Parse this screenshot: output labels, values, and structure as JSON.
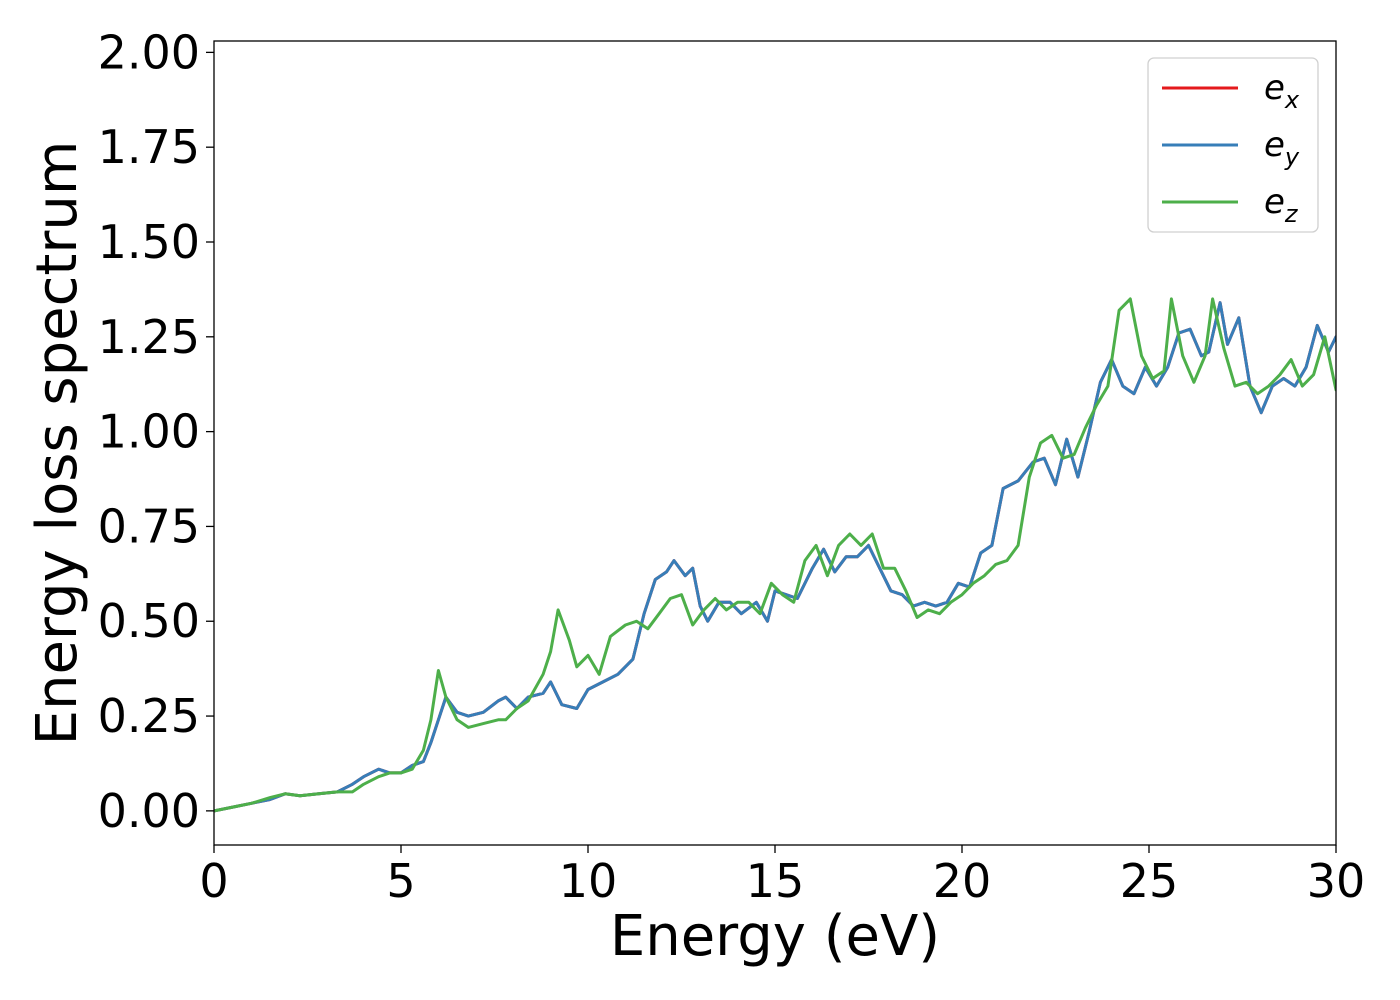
{
  "chart_data": {
    "type": "line",
    "title": "",
    "xlabel": "Energy (eV)",
    "ylabel": "Energy loss spectrum",
    "xlim": [
      0,
      30
    ],
    "ylim": [
      -0.09,
      2.03
    ],
    "x_ticks": [
      0,
      5,
      10,
      15,
      20,
      25,
      30
    ],
    "y_ticks": [
      0.0,
      0.25,
      0.5,
      0.75,
      1.0,
      1.25,
      1.5,
      1.75,
      2.0
    ],
    "y_tick_labels": [
      "0.00",
      "0.25",
      "0.50",
      "0.75",
      "1.00",
      "1.25",
      "1.50",
      "1.75",
      "2.00"
    ],
    "x_tick_labels": [
      "0",
      "5",
      "10",
      "15",
      "20",
      "25",
      "30"
    ],
    "grid": false,
    "legend_position": "top-right",
    "series": [
      {
        "name": "e_x",
        "label_base": "e",
        "label_sub": "x",
        "color": "#e41a1c",
        "x": [
          0,
          0.5,
          1,
          1.5,
          1.9,
          2.3,
          2.8,
          3.3,
          3.7,
          4,
          4.4,
          4.7,
          5,
          5.3,
          5.6,
          5.8,
          6,
          6.2,
          6.5,
          6.8,
          7.2,
          7.6,
          7.8,
          8.1,
          8.4,
          8.8,
          9.0,
          9.3,
          9.7,
          10,
          10.4,
          10.8,
          11.2,
          11.5,
          11.8,
          12.1,
          12.3,
          12.6,
          12.8,
          13,
          13.2,
          13.5,
          13.8,
          14.1,
          14.5,
          14.8,
          15,
          15.3,
          15.6,
          16,
          16.3,
          16.6,
          16.9,
          17.2,
          17.5,
          17.8,
          18.1,
          18.4,
          18.7,
          19,
          19.3,
          19.6,
          19.9,
          20.2,
          20.5,
          20.8,
          21.1,
          21.5,
          21.9,
          22.2,
          22.5,
          22.8,
          23.1,
          23.4,
          23.7,
          24,
          24.3,
          24.6,
          24.9,
          25.2,
          25.5,
          25.8,
          26.1,
          26.4,
          26.6,
          26.9,
          27.1,
          27.4,
          27.7,
          28,
          28.3,
          28.6,
          28.9,
          29.2,
          29.5,
          29.8,
          30
        ],
        "y": [
          0,
          0.01,
          0.02,
          0.03,
          0.045,
          0.04,
          0.045,
          0.05,
          0.07,
          0.09,
          0.11,
          0.1,
          0.1,
          0.12,
          0.13,
          0.18,
          0.24,
          0.3,
          0.26,
          0.25,
          0.26,
          0.29,
          0.3,
          0.27,
          0.3,
          0.31,
          0.34,
          0.28,
          0.27,
          0.32,
          0.34,
          0.36,
          0.4,
          0.52,
          0.61,
          0.63,
          0.66,
          0.62,
          0.64,
          0.54,
          0.5,
          0.55,
          0.55,
          0.52,
          0.55,
          0.5,
          0.58,
          0.57,
          0.56,
          0.64,
          0.69,
          0.63,
          0.67,
          0.67,
          0.7,
          0.64,
          0.58,
          0.57,
          0.54,
          0.55,
          0.54,
          0.55,
          0.6,
          0.59,
          0.68,
          0.7,
          0.85,
          0.87,
          0.92,
          0.93,
          0.86,
          0.98,
          0.88,
          1.0,
          1.13,
          1.19,
          1.12,
          1.1,
          1.17,
          1.12,
          1.17,
          1.26,
          1.27,
          1.2,
          1.21,
          1.34,
          1.23,
          1.3,
          1.12,
          1.05,
          1.12,
          1.14,
          1.12,
          1.17,
          1.28,
          1.21,
          1.25
        ]
      },
      {
        "name": "e_y",
        "label_base": "e",
        "label_sub": "y",
        "color": "#377eb8",
        "x": [
          0,
          0.5,
          1,
          1.5,
          1.9,
          2.3,
          2.8,
          3.3,
          3.7,
          4,
          4.4,
          4.7,
          5,
          5.3,
          5.6,
          5.8,
          6,
          6.2,
          6.5,
          6.8,
          7.2,
          7.6,
          7.8,
          8.1,
          8.4,
          8.8,
          9.0,
          9.3,
          9.7,
          10,
          10.4,
          10.8,
          11.2,
          11.5,
          11.8,
          12.1,
          12.3,
          12.6,
          12.8,
          13,
          13.2,
          13.5,
          13.8,
          14.1,
          14.5,
          14.8,
          15,
          15.3,
          15.6,
          16,
          16.3,
          16.6,
          16.9,
          17.2,
          17.5,
          17.8,
          18.1,
          18.4,
          18.7,
          19,
          19.3,
          19.6,
          19.9,
          20.2,
          20.5,
          20.8,
          21.1,
          21.5,
          21.9,
          22.2,
          22.5,
          22.8,
          23.1,
          23.4,
          23.7,
          24,
          24.3,
          24.6,
          24.9,
          25.2,
          25.5,
          25.8,
          26.1,
          26.4,
          26.6,
          26.9,
          27.1,
          27.4,
          27.7,
          28,
          28.3,
          28.6,
          28.9,
          29.2,
          29.5,
          29.8,
          30
        ],
        "y": [
          0,
          0.01,
          0.02,
          0.03,
          0.045,
          0.04,
          0.045,
          0.05,
          0.07,
          0.09,
          0.11,
          0.1,
          0.1,
          0.12,
          0.13,
          0.18,
          0.24,
          0.3,
          0.26,
          0.25,
          0.26,
          0.29,
          0.3,
          0.27,
          0.3,
          0.31,
          0.34,
          0.28,
          0.27,
          0.32,
          0.34,
          0.36,
          0.4,
          0.52,
          0.61,
          0.63,
          0.66,
          0.62,
          0.64,
          0.54,
          0.5,
          0.55,
          0.55,
          0.52,
          0.55,
          0.5,
          0.58,
          0.57,
          0.56,
          0.64,
          0.69,
          0.63,
          0.67,
          0.67,
          0.7,
          0.64,
          0.58,
          0.57,
          0.54,
          0.55,
          0.54,
          0.55,
          0.6,
          0.59,
          0.68,
          0.7,
          0.85,
          0.87,
          0.92,
          0.93,
          0.86,
          0.98,
          0.88,
          1.0,
          1.13,
          1.19,
          1.12,
          1.1,
          1.17,
          1.12,
          1.17,
          1.26,
          1.27,
          1.2,
          1.21,
          1.34,
          1.23,
          1.3,
          1.12,
          1.05,
          1.12,
          1.14,
          1.12,
          1.17,
          1.28,
          1.21,
          1.25
        ]
      },
      {
        "name": "e_z",
        "label_base": "e",
        "label_sub": "z",
        "color": "#4daf4a",
        "x": [
          0,
          0.5,
          1,
          1.5,
          1.9,
          2.3,
          2.8,
          3.3,
          3.7,
          4,
          4.4,
          4.7,
          5,
          5.3,
          5.6,
          5.8,
          6,
          6.2,
          6.5,
          6.8,
          7.2,
          7.6,
          7.8,
          8.1,
          8.4,
          8.8,
          9.0,
          9.2,
          9.5,
          9.7,
          10,
          10.3,
          10.6,
          11,
          11.3,
          11.6,
          11.9,
          12.2,
          12.5,
          12.8,
          13.1,
          13.4,
          13.7,
          14,
          14.3,
          14.6,
          14.9,
          15.2,
          15.5,
          15.8,
          16.1,
          16.4,
          16.7,
          17,
          17.3,
          17.6,
          17.9,
          18.2,
          18.5,
          18.8,
          19.1,
          19.4,
          19.7,
          20,
          20.3,
          20.6,
          20.9,
          21.2,
          21.5,
          21.8,
          22.1,
          22.4,
          22.7,
          23,
          23.3,
          23.6,
          23.9,
          24.2,
          24.5,
          24.8,
          25.1,
          25.4,
          25.6,
          25.9,
          26.2,
          26.5,
          26.7,
          27,
          27.3,
          27.6,
          27.9,
          28.2,
          28.5,
          28.8,
          29.1,
          29.4,
          29.7,
          30
        ],
        "y": [
          0,
          0.01,
          0.02,
          0.035,
          0.045,
          0.04,
          0.045,
          0.05,
          0.05,
          0.07,
          0.09,
          0.1,
          0.1,
          0.11,
          0.16,
          0.24,
          0.37,
          0.3,
          0.24,
          0.22,
          0.23,
          0.24,
          0.24,
          0.27,
          0.29,
          0.36,
          0.42,
          0.53,
          0.45,
          0.38,
          0.41,
          0.36,
          0.46,
          0.49,
          0.5,
          0.48,
          0.52,
          0.56,
          0.57,
          0.49,
          0.53,
          0.56,
          0.53,
          0.55,
          0.55,
          0.52,
          0.6,
          0.57,
          0.55,
          0.66,
          0.7,
          0.62,
          0.7,
          0.73,
          0.7,
          0.73,
          0.64,
          0.64,
          0.58,
          0.51,
          0.53,
          0.52,
          0.55,
          0.57,
          0.6,
          0.62,
          0.65,
          0.66,
          0.7,
          0.88,
          0.97,
          0.99,
          0.93,
          0.94,
          1.01,
          1.07,
          1.12,
          1.32,
          1.35,
          1.2,
          1.14,
          1.16,
          1.35,
          1.2,
          1.13,
          1.2,
          1.35,
          1.22,
          1.12,
          1.13,
          1.1,
          1.12,
          1.15,
          1.19,
          1.12,
          1.15,
          1.25,
          1.11
        ]
      }
    ]
  }
}
